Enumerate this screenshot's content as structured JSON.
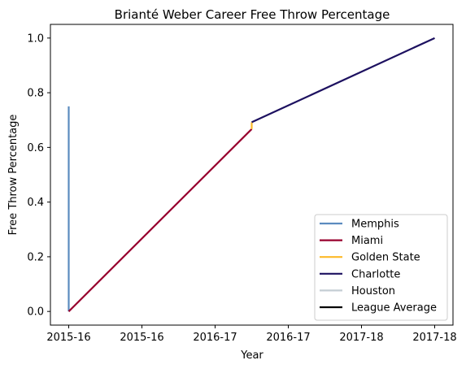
{
  "chart_data": {
    "type": "line",
    "title": "Brianté Weber Career Free Throw Percentage",
    "xlabel": "Year",
    "ylabel": "Free Throw Percentage",
    "xlim": [
      -0.15,
      3.15
    ],
    "ylim": [
      -0.05,
      1.05
    ],
    "x_ticks": [
      {
        "value": 0.0,
        "label": "2015-16"
      },
      {
        "value": 0.6,
        "label": "2015-16"
      },
      {
        "value": 1.2,
        "label": "2016-17"
      },
      {
        "value": 1.8,
        "label": "2016-17"
      },
      {
        "value": 2.4,
        "label": "2017-18"
      },
      {
        "value": 3.0,
        "label": "2017-18"
      }
    ],
    "y_ticks": [
      {
        "value": 0.0,
        "label": "0.0"
      },
      {
        "value": 0.2,
        "label": "0.2"
      },
      {
        "value": 0.4,
        "label": "0.4"
      },
      {
        "value": 0.6,
        "label": "0.6"
      },
      {
        "value": 0.8,
        "label": "0.8"
      },
      {
        "value": 1.0,
        "label": "1.0"
      }
    ],
    "series": [
      {
        "name": "Memphis",
        "color": "#5b8bbf",
        "points": [
          [
            0.0,
            0.75
          ],
          [
            0.0,
            0.0
          ]
        ]
      },
      {
        "name": "Miami",
        "color": "#98002e",
        "points": [
          [
            0.0,
            0.0
          ],
          [
            1.5,
            0.667
          ]
        ]
      },
      {
        "name": "Golden State",
        "color": "#fdb927",
        "points": [
          [
            1.5,
            0.667
          ],
          [
            1.5,
            0.692
          ]
        ]
      },
      {
        "name": "Charlotte",
        "color": "#1d1160",
        "points": [
          [
            1.5,
            0.692
          ],
          [
            3.0,
            1.0
          ]
        ]
      },
      {
        "name": "Houston",
        "color": "#c4ced4",
        "points": []
      },
      {
        "name": "League Average",
        "color": "#000000",
        "points": []
      }
    ],
    "grid": false,
    "legend_position": "bottom-right"
  }
}
